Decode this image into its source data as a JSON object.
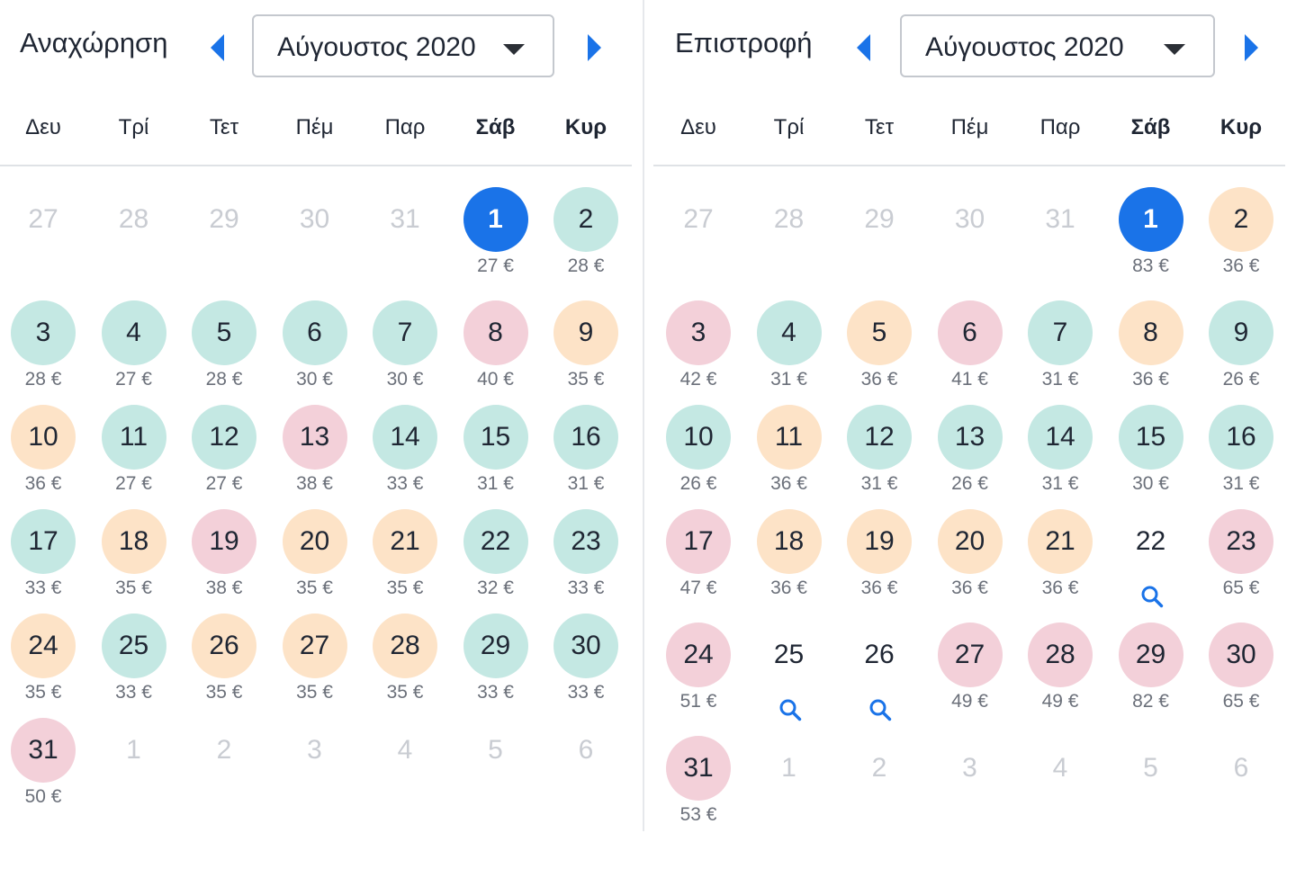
{
  "colors": {
    "selected": "#1a73e8",
    "green": "#c4e8e3",
    "orange": "#fde3c7",
    "red": "#f3d0d9",
    "accent": "#1a73e8"
  },
  "weekdays": [
    "Δευ",
    "Τρί",
    "Τετ",
    "Πέμ",
    "Παρ",
    "Σάβ",
    "Κυρ"
  ],
  "departure": {
    "title": "Αναχώρηση",
    "month_label": "Αύγουστος 2020",
    "days": [
      {
        "day": "27",
        "muted": true
      },
      {
        "day": "28",
        "muted": true
      },
      {
        "day": "29",
        "muted": true
      },
      {
        "day": "30",
        "muted": true
      },
      {
        "day": "31",
        "muted": true
      },
      {
        "day": "1",
        "price": "27 €",
        "level": "selected"
      },
      {
        "day": "2",
        "price": "28 €",
        "level": "green"
      },
      {
        "day": "3",
        "price": "28 €",
        "level": "green"
      },
      {
        "day": "4",
        "price": "27 €",
        "level": "green"
      },
      {
        "day": "5",
        "price": "28 €",
        "level": "green"
      },
      {
        "day": "6",
        "price": "30 €",
        "level": "green"
      },
      {
        "day": "7",
        "price": "30 €",
        "level": "green"
      },
      {
        "day": "8",
        "price": "40 €",
        "level": "red"
      },
      {
        "day": "9",
        "price": "35 €",
        "level": "orange"
      },
      {
        "day": "10",
        "price": "36 €",
        "level": "orange"
      },
      {
        "day": "11",
        "price": "27 €",
        "level": "green"
      },
      {
        "day": "12",
        "price": "27 €",
        "level": "green"
      },
      {
        "day": "13",
        "price": "38 €",
        "level": "red"
      },
      {
        "day": "14",
        "price": "33 €",
        "level": "green"
      },
      {
        "day": "15",
        "price": "31 €",
        "level": "green"
      },
      {
        "day": "16",
        "price": "31 €",
        "level": "green"
      },
      {
        "day": "17",
        "price": "33 €",
        "level": "green"
      },
      {
        "day": "18",
        "price": "35 €",
        "level": "orange"
      },
      {
        "day": "19",
        "price": "38 €",
        "level": "red"
      },
      {
        "day": "20",
        "price": "35 €",
        "level": "orange"
      },
      {
        "day": "21",
        "price": "35 €",
        "level": "orange"
      },
      {
        "day": "22",
        "price": "32 €",
        "level": "green"
      },
      {
        "day": "23",
        "price": "33 €",
        "level": "green"
      },
      {
        "day": "24",
        "price": "35 €",
        "level": "orange"
      },
      {
        "day": "25",
        "price": "33 €",
        "level": "green"
      },
      {
        "day": "26",
        "price": "35 €",
        "level": "orange"
      },
      {
        "day": "27",
        "price": "35 €",
        "level": "orange"
      },
      {
        "day": "28",
        "price": "35 €",
        "level": "orange"
      },
      {
        "day": "29",
        "price": "33 €",
        "level": "green"
      },
      {
        "day": "30",
        "price": "33 €",
        "level": "green"
      },
      {
        "day": "31",
        "price": "50 €",
        "level": "red"
      },
      {
        "day": "1",
        "muted": true
      },
      {
        "day": "2",
        "muted": true
      },
      {
        "day": "3",
        "muted": true
      },
      {
        "day": "4",
        "muted": true
      },
      {
        "day": "5",
        "muted": true
      },
      {
        "day": "6",
        "muted": true
      }
    ]
  },
  "return": {
    "title": "Επιστροφή",
    "month_label": "Αύγουστος 2020",
    "days": [
      {
        "day": "27",
        "muted": true
      },
      {
        "day": "28",
        "muted": true
      },
      {
        "day": "29",
        "muted": true
      },
      {
        "day": "30",
        "muted": true
      },
      {
        "day": "31",
        "muted": true
      },
      {
        "day": "1",
        "price": "83 €",
        "level": "selected"
      },
      {
        "day": "2",
        "price": "36 €",
        "level": "orange"
      },
      {
        "day": "3",
        "price": "42 €",
        "level": "red"
      },
      {
        "day": "4",
        "price": "31 €",
        "level": "green"
      },
      {
        "day": "5",
        "price": "36 €",
        "level": "orange"
      },
      {
        "day": "6",
        "price": "41 €",
        "level": "red"
      },
      {
        "day": "7",
        "price": "31 €",
        "level": "green"
      },
      {
        "day": "8",
        "price": "36 €",
        "level": "orange"
      },
      {
        "day": "9",
        "price": "26 €",
        "level": "green"
      },
      {
        "day": "10",
        "price": "26 €",
        "level": "green"
      },
      {
        "day": "11",
        "price": "36 €",
        "level": "orange"
      },
      {
        "day": "12",
        "price": "31 €",
        "level": "green"
      },
      {
        "day": "13",
        "price": "26 €",
        "level": "green"
      },
      {
        "day": "14",
        "price": "31 €",
        "level": "green"
      },
      {
        "day": "15",
        "price": "30 €",
        "level": "green"
      },
      {
        "day": "16",
        "price": "31 €",
        "level": "green"
      },
      {
        "day": "17",
        "price": "47 €",
        "level": "red"
      },
      {
        "day": "18",
        "price": "36 €",
        "level": "orange"
      },
      {
        "day": "19",
        "price": "36 €",
        "level": "orange"
      },
      {
        "day": "20",
        "price": "36 €",
        "level": "orange"
      },
      {
        "day": "21",
        "price": "36 €",
        "level": "orange"
      },
      {
        "day": "22",
        "search": true
      },
      {
        "day": "23",
        "price": "65 €",
        "level": "red"
      },
      {
        "day": "24",
        "price": "51 €",
        "level": "red"
      },
      {
        "day": "25",
        "search": true
      },
      {
        "day": "26",
        "search": true
      },
      {
        "day": "27",
        "price": "49 €",
        "level": "red"
      },
      {
        "day": "28",
        "price": "49 €",
        "level": "red"
      },
      {
        "day": "29",
        "price": "82 €",
        "level": "red"
      },
      {
        "day": "30",
        "price": "65 €",
        "level": "red"
      },
      {
        "day": "31",
        "price": "53 €",
        "level": "red"
      },
      {
        "day": "1",
        "muted": true
      },
      {
        "day": "2",
        "muted": true
      },
      {
        "day": "3",
        "muted": true
      },
      {
        "day": "4",
        "muted": true
      },
      {
        "day": "5",
        "muted": true
      },
      {
        "day": "6",
        "muted": true
      }
    ]
  }
}
